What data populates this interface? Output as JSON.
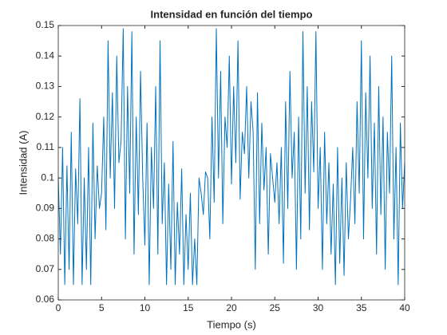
{
  "chart_data": {
    "type": "line",
    "title": "Intensidad en función del tiempo",
    "xlabel": "Tiempo (s)",
    "ylabel": "Intensidad (A)",
    "xlim": [
      0,
      40
    ],
    "xticks": [
      0,
      5,
      10,
      15,
      20,
      25,
      30,
      35,
      40
    ],
    "ylim": [
      0.06,
      0.15
    ],
    "yticks": [
      0.06,
      0.07,
      0.08,
      0.09,
      0.1,
      0.11,
      0.12,
      0.13,
      0.14,
      0.15
    ],
    "series": [
      {
        "color": "#0072bd",
        "x": [
          0,
          0.25,
          0.5,
          0.75,
          1,
          1.25,
          1.5,
          1.75,
          2,
          2.25,
          2.5,
          2.75,
          3,
          3.25,
          3.5,
          3.75,
          4,
          4.25,
          4.5,
          4.75,
          5,
          5.25,
          5.5,
          5.75,
          6,
          6.25,
          6.5,
          6.75,
          7,
          7.25,
          7.5,
          7.75,
          8,
          8.25,
          8.5,
          8.75,
          9,
          9.25,
          9.5,
          9.75,
          10,
          10.25,
          10.5,
          10.75,
          11,
          11.25,
          11.5,
          11.75,
          12,
          12.25,
          12.5,
          12.75,
          13,
          13.25,
          13.5,
          13.75,
          14,
          14.25,
          14.5,
          14.75,
          15,
          15.25,
          15.5,
          15.75,
          16,
          16.25,
          16.5,
          16.75,
          17,
          17.25,
          17.5,
          17.75,
          18,
          18.25,
          18.5,
          18.75,
          19,
          19.25,
          19.5,
          19.75,
          20,
          20.25,
          20.5,
          20.75,
          21,
          21.25,
          21.5,
          21.75,
          22,
          22.25,
          22.5,
          22.75,
          23,
          23.25,
          23.5,
          23.75,
          24,
          24.25,
          24.5,
          24.75,
          25,
          25.25,
          25.5,
          25.75,
          26,
          26.25,
          26.5,
          26.75,
          27,
          27.25,
          27.5,
          27.75,
          28,
          28.25,
          28.5,
          28.75,
          29,
          29.25,
          29.5,
          29.75,
          30,
          30.25,
          30.5,
          30.75,
          31,
          31.25,
          31.5,
          31.75,
          32,
          32.25,
          32.5,
          32.75,
          33,
          33.25,
          33.5,
          33.75,
          34,
          34.25,
          34.5,
          34.75,
          35,
          35.25,
          35.5,
          35.75,
          36,
          36.25,
          36.5,
          36.75,
          37,
          37.25,
          37.5,
          37.75,
          38,
          38.25,
          38.5,
          38.75,
          39,
          39.25,
          39.5,
          39.75,
          40
        ],
        "values": [
          0.1,
          0.075,
          0.11,
          0.065,
          0.104,
          0.07,
          0.115,
          0.065,
          0.103,
          0.085,
          0.126,
          0.065,
          0.1,
          0.07,
          0.11,
          0.065,
          0.118,
          0.08,
          0.104,
          0.09,
          0.095,
          0.12,
          0.083,
          0.145,
          0.1,
          0.128,
          0.09,
          0.14,
          0.105,
          0.112,
          0.149,
          0.08,
          0.13,
          0.095,
          0.148,
          0.075,
          0.12,
          0.088,
          0.135,
          0.1,
          0.078,
          0.118,
          0.065,
          0.11,
          0.09,
          0.13,
          0.075,
          0.145,
          0.085,
          0.105,
          0.065,
          0.098,
          0.07,
          0.112,
          0.065,
          0.092,
          0.075,
          0.103,
          0.065,
          0.088,
          0.07,
          0.095,
          0.065,
          0.08,
          0.065,
          0.1,
          0.095,
          0.088,
          0.102,
          0.1,
          0.08,
          0.12,
          0.092,
          0.149,
          0.1,
          0.135,
          0.085,
          0.12,
          0.11,
          0.14,
          0.098,
          0.13,
          0.105,
          0.145,
          0.093,
          0.115,
          0.108,
          0.13,
          0.1,
          0.125,
          0.115,
          0.07,
          0.128,
          0.085,
          0.118,
          0.096,
          0.11,
          0.075,
          0.108,
          0.1,
          0.092,
          0.105,
          0.085,
          0.11,
          0.072,
          0.125,
          0.09,
          0.135,
          0.1,
          0.115,
          0.07,
          0.12,
          0.08,
          0.148,
          0.095,
          0.13,
          0.083,
          0.125,
          0.102,
          0.148,
          0.09,
          0.11,
          0.07,
          0.115,
          0.085,
          0.105,
          0.075,
          0.098,
          0.065,
          0.11,
          0.072,
          0.1,
          0.068,
          0.105,
          0.08,
          0.093,
          0.11,
          0.085,
          0.125,
          0.095,
          0.145,
          0.08,
          0.128,
          0.1,
          0.14,
          0.09,
          0.118,
          0.075,
          0.13,
          0.088,
          0.12,
          0.07,
          0.115,
          0.095,
          0.14,
          0.08,
          0.11,
          0.065,
          0.118,
          0.09,
          0.105
        ]
      }
    ]
  }
}
